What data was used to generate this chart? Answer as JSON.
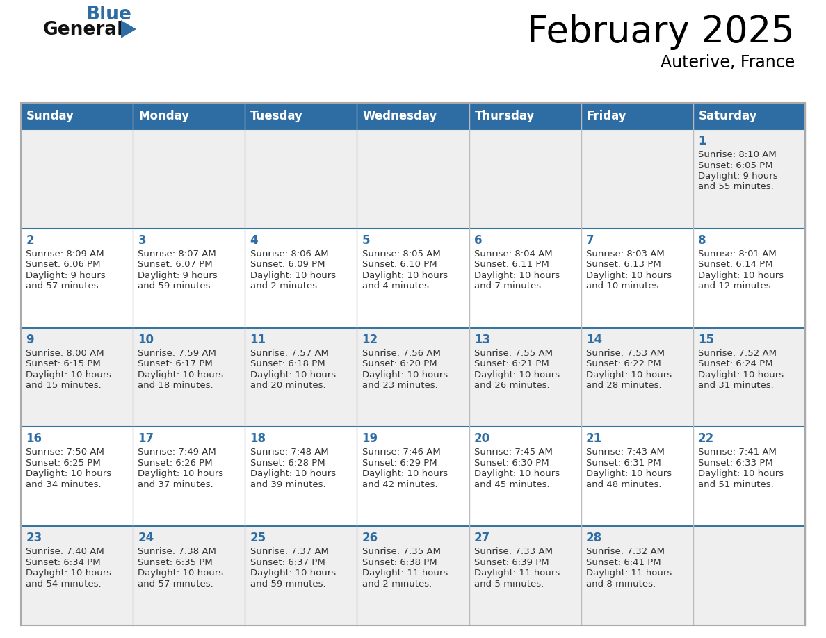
{
  "title": "February 2025",
  "subtitle": "Auterive, France",
  "days_of_week": [
    "Sunday",
    "Monday",
    "Tuesday",
    "Wednesday",
    "Thursday",
    "Friday",
    "Saturday"
  ],
  "header_bg_color": "#2E6DA4",
  "header_text_color": "#FFFFFF",
  "cell_bg_color": "#EFEFEF",
  "cell_bg_white": "#FFFFFF",
  "day_number_color": "#2E6DA4",
  "text_color": "#333333",
  "grid_color": "#BBBBBB",
  "logo_general_color": "#111111",
  "logo_blue_color": "#2E6DA4",
  "calendar_data": [
    {
      "day": 1,
      "row": 0,
      "col": 6,
      "sunrise": "8:10 AM",
      "sunset": "6:05 PM",
      "daylight_h": "9 hours",
      "daylight_m": "and 55 minutes."
    },
    {
      "day": 2,
      "row": 1,
      "col": 0,
      "sunrise": "8:09 AM",
      "sunset": "6:06 PM",
      "daylight_h": "9 hours",
      "daylight_m": "and 57 minutes."
    },
    {
      "day": 3,
      "row": 1,
      "col": 1,
      "sunrise": "8:07 AM",
      "sunset": "6:07 PM",
      "daylight_h": "9 hours",
      "daylight_m": "and 59 minutes."
    },
    {
      "day": 4,
      "row": 1,
      "col": 2,
      "sunrise": "8:06 AM",
      "sunset": "6:09 PM",
      "daylight_h": "10 hours",
      "daylight_m": "and 2 minutes."
    },
    {
      "day": 5,
      "row": 1,
      "col": 3,
      "sunrise": "8:05 AM",
      "sunset": "6:10 PM",
      "daylight_h": "10 hours",
      "daylight_m": "and 4 minutes."
    },
    {
      "day": 6,
      "row": 1,
      "col": 4,
      "sunrise": "8:04 AM",
      "sunset": "6:11 PM",
      "daylight_h": "10 hours",
      "daylight_m": "and 7 minutes."
    },
    {
      "day": 7,
      "row": 1,
      "col": 5,
      "sunrise": "8:03 AM",
      "sunset": "6:13 PM",
      "daylight_h": "10 hours",
      "daylight_m": "and 10 minutes."
    },
    {
      "day": 8,
      "row": 1,
      "col": 6,
      "sunrise": "8:01 AM",
      "sunset": "6:14 PM",
      "daylight_h": "10 hours",
      "daylight_m": "and 12 minutes."
    },
    {
      "day": 9,
      "row": 2,
      "col": 0,
      "sunrise": "8:00 AM",
      "sunset": "6:15 PM",
      "daylight_h": "10 hours",
      "daylight_m": "and 15 minutes."
    },
    {
      "day": 10,
      "row": 2,
      "col": 1,
      "sunrise": "7:59 AM",
      "sunset": "6:17 PM",
      "daylight_h": "10 hours",
      "daylight_m": "and 18 minutes."
    },
    {
      "day": 11,
      "row": 2,
      "col": 2,
      "sunrise": "7:57 AM",
      "sunset": "6:18 PM",
      "daylight_h": "10 hours",
      "daylight_m": "and 20 minutes."
    },
    {
      "day": 12,
      "row": 2,
      "col": 3,
      "sunrise": "7:56 AM",
      "sunset": "6:20 PM",
      "daylight_h": "10 hours",
      "daylight_m": "and 23 minutes."
    },
    {
      "day": 13,
      "row": 2,
      "col": 4,
      "sunrise": "7:55 AM",
      "sunset": "6:21 PM",
      "daylight_h": "10 hours",
      "daylight_m": "and 26 minutes."
    },
    {
      "day": 14,
      "row": 2,
      "col": 5,
      "sunrise": "7:53 AM",
      "sunset": "6:22 PM",
      "daylight_h": "10 hours",
      "daylight_m": "and 28 minutes."
    },
    {
      "day": 15,
      "row": 2,
      "col": 6,
      "sunrise": "7:52 AM",
      "sunset": "6:24 PM",
      "daylight_h": "10 hours",
      "daylight_m": "and 31 minutes."
    },
    {
      "day": 16,
      "row": 3,
      "col": 0,
      "sunrise": "7:50 AM",
      "sunset": "6:25 PM",
      "daylight_h": "10 hours",
      "daylight_m": "and 34 minutes."
    },
    {
      "day": 17,
      "row": 3,
      "col": 1,
      "sunrise": "7:49 AM",
      "sunset": "6:26 PM",
      "daylight_h": "10 hours",
      "daylight_m": "and 37 minutes."
    },
    {
      "day": 18,
      "row": 3,
      "col": 2,
      "sunrise": "7:48 AM",
      "sunset": "6:28 PM",
      "daylight_h": "10 hours",
      "daylight_m": "and 39 minutes."
    },
    {
      "day": 19,
      "row": 3,
      "col": 3,
      "sunrise": "7:46 AM",
      "sunset": "6:29 PM",
      "daylight_h": "10 hours",
      "daylight_m": "and 42 minutes."
    },
    {
      "day": 20,
      "row": 3,
      "col": 4,
      "sunrise": "7:45 AM",
      "sunset": "6:30 PM",
      "daylight_h": "10 hours",
      "daylight_m": "and 45 minutes."
    },
    {
      "day": 21,
      "row": 3,
      "col": 5,
      "sunrise": "7:43 AM",
      "sunset": "6:31 PM",
      "daylight_h": "10 hours",
      "daylight_m": "and 48 minutes."
    },
    {
      "day": 22,
      "row": 3,
      "col": 6,
      "sunrise": "7:41 AM",
      "sunset": "6:33 PM",
      "daylight_h": "10 hours",
      "daylight_m": "and 51 minutes."
    },
    {
      "day": 23,
      "row": 4,
      "col": 0,
      "sunrise": "7:40 AM",
      "sunset": "6:34 PM",
      "daylight_h": "10 hours",
      "daylight_m": "and 54 minutes."
    },
    {
      "day": 24,
      "row": 4,
      "col": 1,
      "sunrise": "7:38 AM",
      "sunset": "6:35 PM",
      "daylight_h": "10 hours",
      "daylight_m": "and 57 minutes."
    },
    {
      "day": 25,
      "row": 4,
      "col": 2,
      "sunrise": "7:37 AM",
      "sunset": "6:37 PM",
      "daylight_h": "10 hours",
      "daylight_m": "and 59 minutes."
    },
    {
      "day": 26,
      "row": 4,
      "col": 3,
      "sunrise": "7:35 AM",
      "sunset": "6:38 PM",
      "daylight_h": "11 hours",
      "daylight_m": "and 2 minutes."
    },
    {
      "day": 27,
      "row": 4,
      "col": 4,
      "sunrise": "7:33 AM",
      "sunset": "6:39 PM",
      "daylight_h": "11 hours",
      "daylight_m": "and 5 minutes."
    },
    {
      "day": 28,
      "row": 4,
      "col": 5,
      "sunrise": "7:32 AM",
      "sunset": "6:41 PM",
      "daylight_h": "11 hours",
      "daylight_m": "and 8 minutes."
    }
  ]
}
